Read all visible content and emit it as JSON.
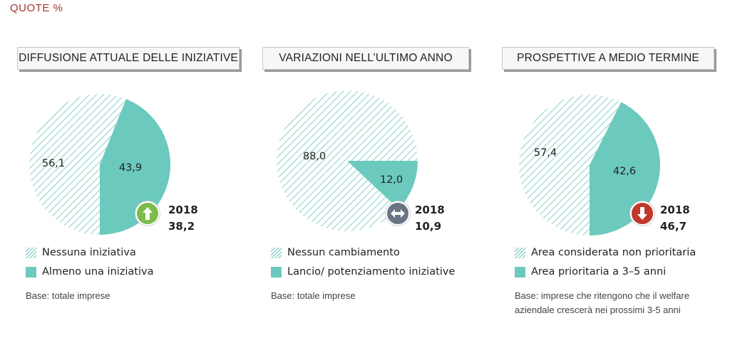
{
  "title": "QUOTE %",
  "colors": {
    "accent": "#6cc9bd",
    "hatch": "#8fd3cb",
    "title": "#a4352b",
    "up": "#7dbb4a",
    "flat": "#6a7485",
    "down": "#c0392b"
  },
  "panels": [
    {
      "title": "DIFFUSIONE ATTUALE DELLE INIZIATIVE",
      "labels": [
        "56,1",
        "43,9"
      ],
      "compare": {
        "year": "2018",
        "value": "38,2",
        "trend": "up",
        "icon": "arrow-up-icon"
      },
      "legend": [
        "Nessuna iniziativa",
        "Almeno una iniziativa"
      ],
      "note": [
        "Base: totale imprese"
      ]
    },
    {
      "title": "VARIAZIONI NELL’ULTIMO ANNO",
      "labels": [
        "88,0",
        "12,0"
      ],
      "compare": {
        "year": "2018",
        "value": "10,9",
        "trend": "flat",
        "icon": "arrow-left-right-icon"
      },
      "legend": [
        "Nessun cambiamento",
        "Lancio/ potenziamento iniziative"
      ],
      "note": [
        "Base: totale imprese"
      ]
    },
    {
      "title": "PROSPETTIVE A MEDIO TERMINE",
      "labels": [
        "57,4",
        "42,6"
      ],
      "compare": {
        "year": "2018",
        "value": "46,7",
        "trend": "down",
        "icon": "arrow-down-icon"
      },
      "legend": [
        "Area considerata non prioritaria",
        "Area prioritaria a 3–5 anni"
      ],
      "note": [
        "Base: imprese che ritengono che il welfare",
        "aziendale crescerà nei prossimi 3-5 anni"
      ]
    }
  ],
  "chart_data": [
    {
      "type": "pie",
      "title": "DIFFUSIONE ATTUALE DELLE INIZIATIVE",
      "categories": [
        "Nessuna iniziativa",
        "Almeno una iniziativa"
      ],
      "values": [
        56.1,
        43.9
      ],
      "comparison": {
        "year": "2018",
        "value": 38.2
      }
    },
    {
      "type": "pie",
      "title": "VARIAZIONI NELL’ULTIMO ANNO",
      "categories": [
        "Nessun cambiamento",
        "Lancio/ potenziamento iniziative"
      ],
      "values": [
        88.0,
        12.0
      ],
      "comparison": {
        "year": "2018",
        "value": 10.9
      }
    },
    {
      "type": "pie",
      "title": "PROSPETTIVE A MEDIO TERMINE",
      "categories": [
        "Area considerata non prioritaria",
        "Area prioritaria a 3–5 anni"
      ],
      "values": [
        57.4,
        42.6
      ],
      "comparison": {
        "year": "2018",
        "value": 46.7
      }
    }
  ]
}
